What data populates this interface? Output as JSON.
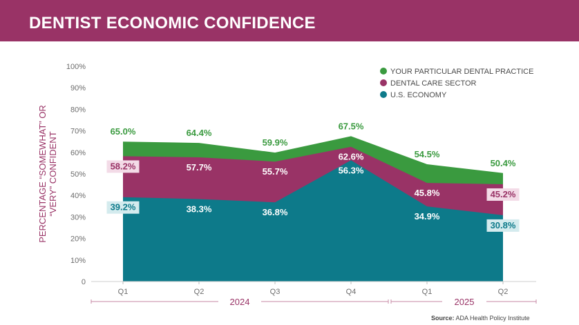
{
  "header": {
    "title": "DENTIST ECONOMIC CONFIDENCE"
  },
  "source": {
    "label": "Source:",
    "text": "ADA Health Policy Institute"
  },
  "colors": {
    "header": "#993366",
    "practice": "#3a9a3f",
    "sector": "#993366",
    "economy": "#0d7a8a"
  },
  "chart_data": {
    "type": "area",
    "ylabel": [
      "PERCENTAGE “SOMEWHAT” OR",
      "“VERY” CONFIDENT"
    ],
    "yticks": [
      "0",
      "10%",
      "20%",
      "30%",
      "40%",
      "50%",
      "60%",
      "70%",
      "80%",
      "90%",
      "100%"
    ],
    "ylim": [
      0,
      100
    ],
    "categories": [
      "Q1",
      "Q2",
      "Q3",
      "Q4",
      "Q1",
      "Q2"
    ],
    "years": [
      {
        "label": "2024",
        "start": 0,
        "end": 3
      },
      {
        "label": "2025",
        "start": 4,
        "end": 5
      }
    ],
    "legend_position": "top-right",
    "series": [
      {
        "name": "YOUR PARTICULAR DENTAL PRACTICE",
        "key": "practice",
        "values": [
          65.0,
          64.4,
          59.9,
          67.5,
          54.5,
          50.4
        ],
        "labels": [
          "65.0%",
          "64.4%",
          "59.9%",
          "67.5%",
          "54.5%",
          "50.4%"
        ]
      },
      {
        "name": "DENTAL CARE SECTOR",
        "key": "sector",
        "values": [
          58.2,
          57.7,
          55.7,
          62.6,
          45.8,
          45.2
        ],
        "labels": [
          "58.2%",
          "57.7%",
          "55.7%",
          "62.6%",
          "45.8%",
          "45.2%"
        ]
      },
      {
        "name": "U.S. ECONOMY",
        "key": "economy",
        "values": [
          39.2,
          38.3,
          36.8,
          56.3,
          34.9,
          30.8
        ],
        "labels": [
          "39.2%",
          "38.3%",
          "36.8%",
          "56.3%",
          "34.9%",
          "30.8%"
        ]
      }
    ]
  }
}
